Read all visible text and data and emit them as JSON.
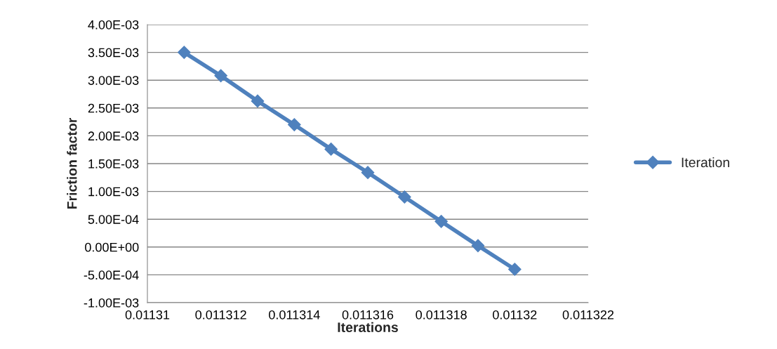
{
  "chart_data": {
    "type": "line",
    "xlabel": "Iterations",
    "ylabel": "Friction factor",
    "x": [
      0.011311,
      0.011312,
      0.011313,
      0.011314,
      0.011315,
      0.011316,
      0.011317,
      0.011318,
      0.011319,
      0.01132
    ],
    "series": [
      {
        "name": "Iteration",
        "color": "#4f81bd",
        "values": [
          0.0035,
          0.00308,
          0.002625,
          0.0022,
          0.00176,
          0.00134,
          0.0009,
          0.00046,
          2.5e-05,
          -0.0004
        ]
      }
    ],
    "xlim": [
      0.01131,
      0.011322
    ],
    "xticks": [
      {
        "value": 0.01131,
        "label": "0.01131"
      },
      {
        "value": 0.011312,
        "label": "0.011312"
      },
      {
        "value": 0.011314,
        "label": "0.011314"
      },
      {
        "value": 0.011316,
        "label": "0.011316"
      },
      {
        "value": 0.011318,
        "label": "0.011318"
      },
      {
        "value": 0.01132,
        "label": "0.01132"
      },
      {
        "value": 0.011322,
        "label": "0.011322"
      }
    ],
    "ylim": [
      -0.001,
      0.004
    ],
    "yticks": [
      {
        "value": -0.001,
        "label": "-1.00E-03"
      },
      {
        "value": -0.0005,
        "label": "-5.00E-04"
      },
      {
        "value": 0,
        "label": "0.00E+00"
      },
      {
        "value": 0.0005,
        "label": "5.00E-04"
      },
      {
        "value": 0.001,
        "label": "1.00E-03"
      },
      {
        "value": 0.0015,
        "label": "1.50E-03"
      },
      {
        "value": 0.002,
        "label": "2.00E-03"
      },
      {
        "value": 0.0025,
        "label": "2.50E-03"
      },
      {
        "value": 0.003,
        "label": "3.00E-03"
      },
      {
        "value": 0.0035,
        "label": "3.50E-03"
      },
      {
        "value": 0.004,
        "label": "4.00E-03"
      }
    ],
    "grid": "y",
    "legend": "right",
    "marker": "diamond",
    "line_style": "solid"
  }
}
